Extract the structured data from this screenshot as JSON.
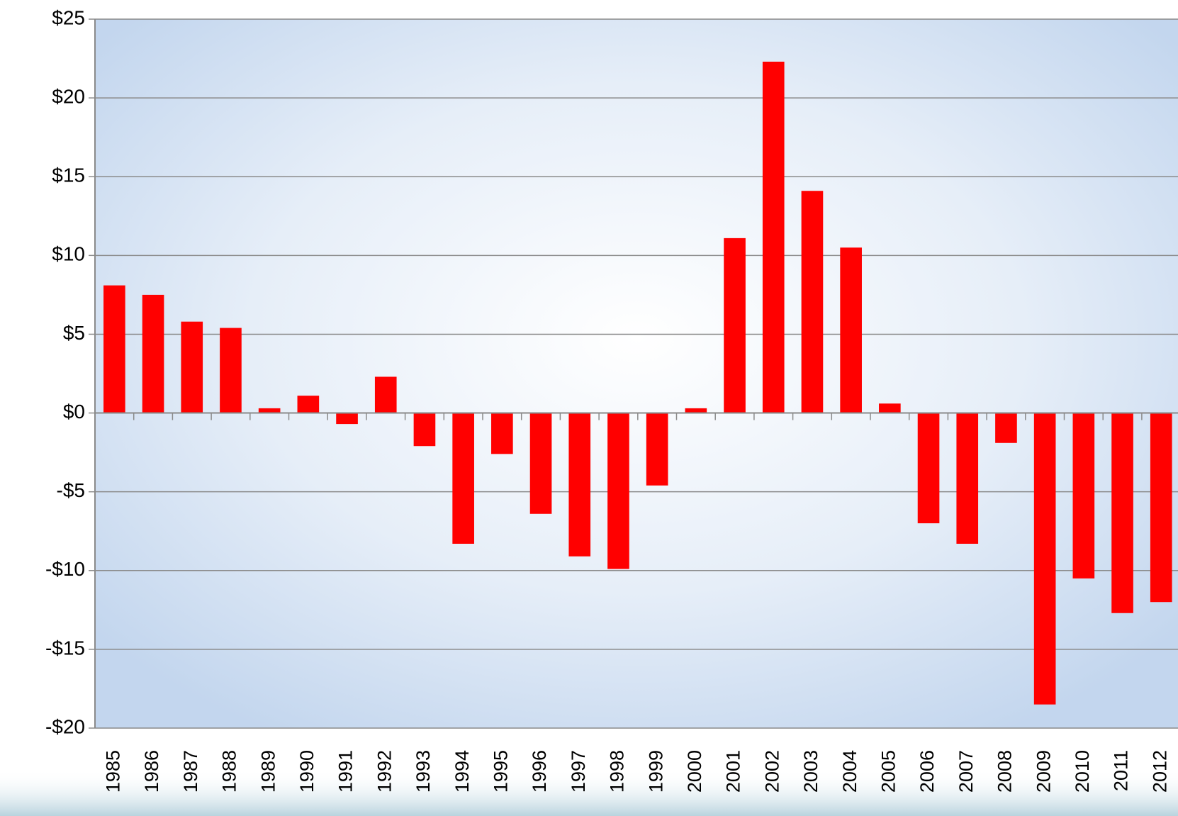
{
  "chart_data": {
    "type": "bar",
    "categories": [
      "1985",
      "1986",
      "1987",
      "1988",
      "1989",
      "1990",
      "1991",
      "1992",
      "1993",
      "1994",
      "1995",
      "1996",
      "1997",
      "1998",
      "1999",
      "2000",
      "2001",
      "2002",
      "2003",
      "2004",
      "2005",
      "2006",
      "2007",
      "2008",
      "2009",
      "2010",
      "2011",
      "2012"
    ],
    "values": [
      8.1,
      7.5,
      5.8,
      5.4,
      0.3,
      1.1,
      -0.7,
      2.3,
      -2.1,
      -8.3,
      -2.6,
      -6.4,
      -9.1,
      -9.9,
      -4.6,
      0.3,
      11.1,
      22.3,
      14.1,
      10.5,
      0.6,
      -7.0,
      -8.3,
      -1.9,
      -18.5,
      -10.5,
      -12.7,
      -12.0
    ],
    "color": "#ff0000",
    "ylim": [
      -20,
      25
    ],
    "yticks": [
      {
        "value": -20,
        "label": "-$20"
      },
      {
        "value": -15,
        "label": "-$15"
      },
      {
        "value": -10,
        "label": "-$10"
      },
      {
        "value": -5,
        "label": "-$5"
      },
      {
        "value": 0,
        "label": "$0"
      },
      {
        "value": 5,
        "label": "$5"
      },
      {
        "value": 10,
        "label": "$10"
      },
      {
        "value": 15,
        "label": "$15"
      },
      {
        "value": 20,
        "label": "$20"
      },
      {
        "value": 25,
        "label": "$25"
      }
    ],
    "grid": true
  }
}
